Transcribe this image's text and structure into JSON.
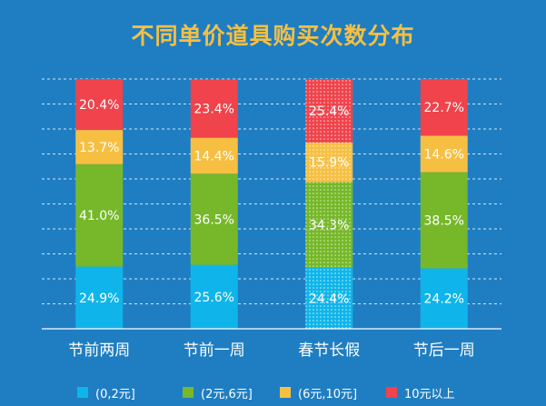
{
  "chart_data": {
    "type": "bar",
    "stacked": true,
    "percent": true,
    "title": "不同单价道具购买次数分布",
    "categories": [
      "节前两周",
      "节前一周",
      "春节长假",
      "节后一周"
    ],
    "series": [
      {
        "name": "(0,2元]",
        "color": "#0fb5ea",
        "values": [
          24.9,
          25.6,
          24.4,
          24.2
        ],
        "labels": [
          "24.9%",
          "25.6%",
          "24.4%",
          "24.2%"
        ]
      },
      {
        "name": "(2元,6元]",
        "color": "#76b82a",
        "values": [
          41.0,
          36.5,
          34.3,
          38.5
        ],
        "labels": [
          "41.0%",
          "36.5%",
          "34.3%",
          "38.5%"
        ]
      },
      {
        "name": "(6元,10元]",
        "color": "#f7bf42",
        "values": [
          13.7,
          14.4,
          15.9,
          14.6
        ],
        "labels": [
          "13.7%",
          "14.4%",
          "15.9%",
          "14.6%"
        ]
      },
      {
        "name": "10元以上",
        "color": "#f0434b",
        "values": [
          20.4,
          23.4,
          25.4,
          22.7
        ],
        "labels": [
          "20.4%",
          "23.4%",
          "25.4%",
          "22.7%"
        ]
      }
    ],
    "ylim": [
      0,
      100
    ],
    "highlight_category": "春节长假",
    "grid": true,
    "legend_position": "bottom"
  }
}
